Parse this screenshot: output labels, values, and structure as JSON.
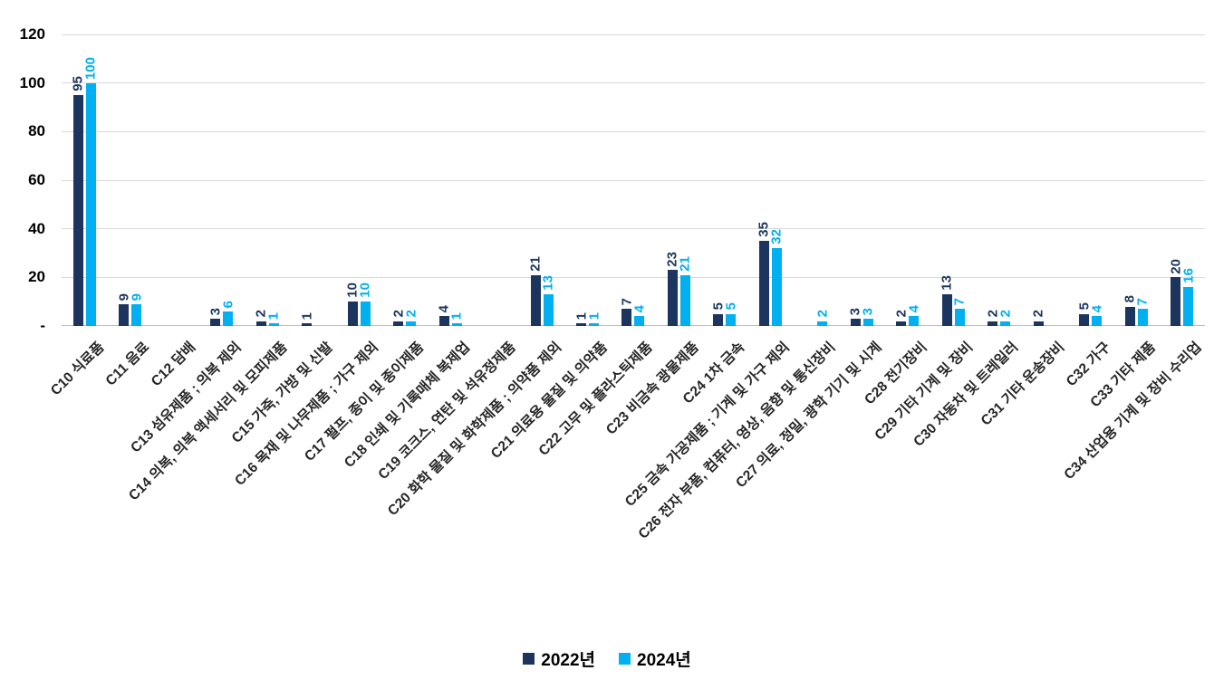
{
  "chart_data": {
    "type": "bar",
    "title": "",
    "xlabel": "",
    "ylabel": "",
    "ylim": [
      0,
      120
    ],
    "grid": true,
    "legend_position": "bottom",
    "yticks": [
      {
        "value": 0,
        "label": "-"
      },
      {
        "value": 20,
        "label": "20"
      },
      {
        "value": 40,
        "label": "40"
      },
      {
        "value": 60,
        "label": "60"
      },
      {
        "value": 80,
        "label": "80"
      },
      {
        "value": 100,
        "label": "100"
      },
      {
        "value": 120,
        "label": "120"
      }
    ],
    "categories": [
      "C10 식료품",
      "C11 음료",
      "C12 담배",
      "C13 섬유제품 ; 의복 제외",
      "C14 의복, 의복 액세서리 및 모피제품",
      "C15 가죽, 가방 및 신발",
      "C16 목재 및 나무제품 ; 가구 제외",
      "C17 펄프, 종이 및 종이제품",
      "C18 인쇄 및 기록매체 복제업",
      "C19 코크스, 연탄 및 석유정제품",
      "C20 화학 물질 및 화학제품 ; 의약품 제외",
      "C21 의료용 물질 및 의약품",
      "C22 고무 및 플라스틱제품",
      "C23 비금속 광물제품",
      "C24 1차 금속",
      "C25 금속 가공제품 ; 기계 및 가구 제외",
      "C26 전자 부품, 컴퓨터, 영상, 음향 및 통신장비",
      "C27 의료, 정밀, 광학 기기 및 시계",
      "C28 전기장비",
      "C29 기타 기계 및 장비",
      "C30 자동차 및 트레일러",
      "C31 기타 운송장비",
      "C32 가구",
      "C33 기타 제품",
      "C34 산업용 기계 및 장비 수리업"
    ],
    "series": [
      {
        "name": "2022년",
        "color": "#1C355E",
        "values": [
          95,
          9,
          null,
          3,
          2,
          1,
          10,
          2,
          4,
          null,
          21,
          1,
          7,
          23,
          5,
          35,
          null,
          3,
          2,
          13,
          2,
          2,
          5,
          8,
          20
        ]
      },
      {
        "name": "2024년",
        "color": "#00B0F0",
        "values": [
          100,
          9,
          null,
          6,
          1,
          null,
          10,
          2,
          1,
          null,
          13,
          1,
          4,
          21,
          5,
          32,
          2,
          3,
          4,
          7,
          2,
          null,
          4,
          7,
          16
        ]
      }
    ]
  }
}
